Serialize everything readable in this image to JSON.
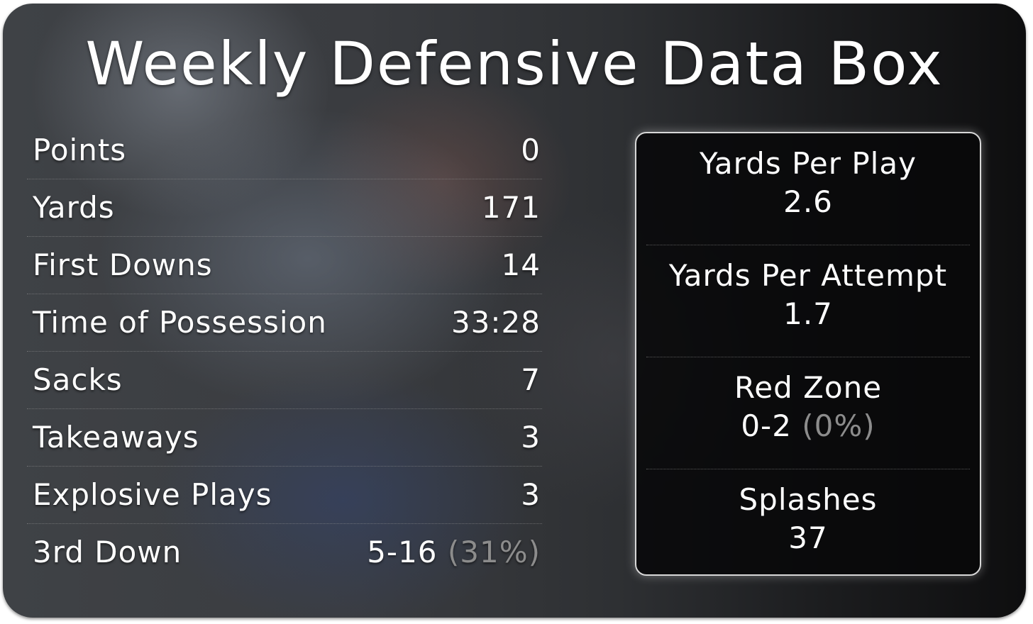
{
  "title": "Weekly Defensive Data Box",
  "stats": [
    {
      "label": "Points",
      "value": "0"
    },
    {
      "label": "Yards",
      "value": "171"
    },
    {
      "label": "First Downs",
      "value": "14"
    },
    {
      "label": "Time of Possession",
      "value": "33:28"
    },
    {
      "label": "Sacks",
      "value": "7"
    },
    {
      "label": "Takeaways",
      "value": "3"
    },
    {
      "label": "Explosive Plays",
      "value": "3"
    },
    {
      "label": "3rd Down",
      "value": "5-16",
      "pct": "(31%)"
    }
  ],
  "metrics": [
    {
      "label": "Yards Per Play",
      "value": "2.6"
    },
    {
      "label": "Yards Per Attempt",
      "value": "1.7"
    },
    {
      "label": "Red Zone",
      "value": "0-2",
      "pct": "(0%)"
    },
    {
      "label": "Splashes",
      "value": "37"
    }
  ],
  "colors": {
    "text": "#ffffff",
    "muted_pct": "#8c8c8c",
    "panel_border": "#d8d8d8"
  }
}
